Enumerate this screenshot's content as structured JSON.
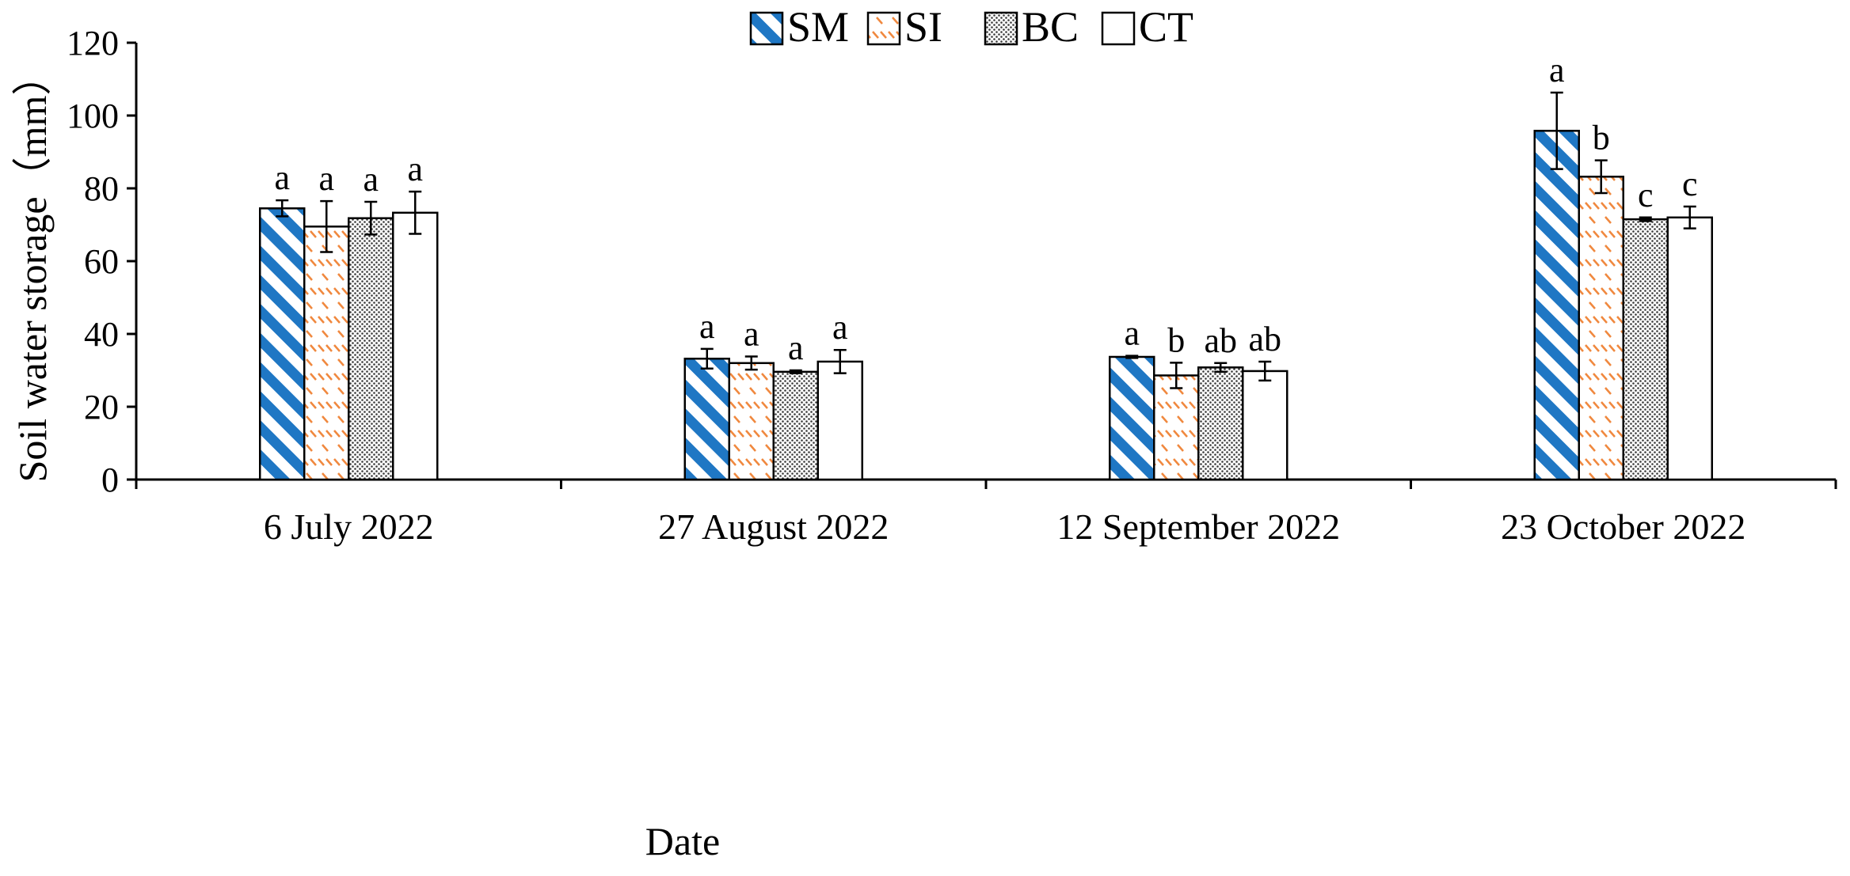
{
  "chart_data": {
    "type": "bar",
    "title": "",
    "xlabel": "Date",
    "ylabel": "Soil water storage（mm）",
    "ylim": [
      0,
      120
    ],
    "yticks": [
      0,
      20,
      40,
      60,
      80,
      100,
      120
    ],
    "categories": [
      "6 July 2022",
      "27 August 2022",
      "12 September 2022",
      "23 October 2022"
    ],
    "legend_position": "top-center",
    "grid": false,
    "series": [
      {
        "name": "SM",
        "pattern": "diagonal-stripes",
        "color": "#1f77c4",
        "values": [
          74.5,
          33.2,
          33.7,
          95.8
        ],
        "errors": [
          2.2,
          2.7,
          0.3,
          10.5
        ],
        "labels": [
          "a",
          "a",
          "a",
          "a"
        ]
      },
      {
        "name": "SI",
        "pattern": "dashes",
        "color": "#f0883e",
        "values": [
          69.5,
          32.0,
          28.6,
          83.2
        ],
        "errors": [
          7.0,
          1.8,
          3.5,
          4.5
        ],
        "labels": [
          "a",
          "a",
          "b",
          "b"
        ]
      },
      {
        "name": "BC",
        "pattern": "dots",
        "color": "#444444",
        "values": [
          71.8,
          29.6,
          30.8,
          71.5
        ],
        "errors": [
          4.5,
          0.4,
          1.2,
          0.5
        ],
        "labels": [
          "a",
          "a",
          "ab",
          "c"
        ]
      },
      {
        "name": "CT",
        "pattern": "none",
        "color": "#ffffff",
        "values": [
          73.3,
          32.4,
          29.8,
          72.0
        ],
        "errors": [
          5.8,
          3.2,
          2.6,
          3.0
        ],
        "labels": [
          "a",
          "a",
          "ab",
          "c"
        ]
      }
    ]
  }
}
